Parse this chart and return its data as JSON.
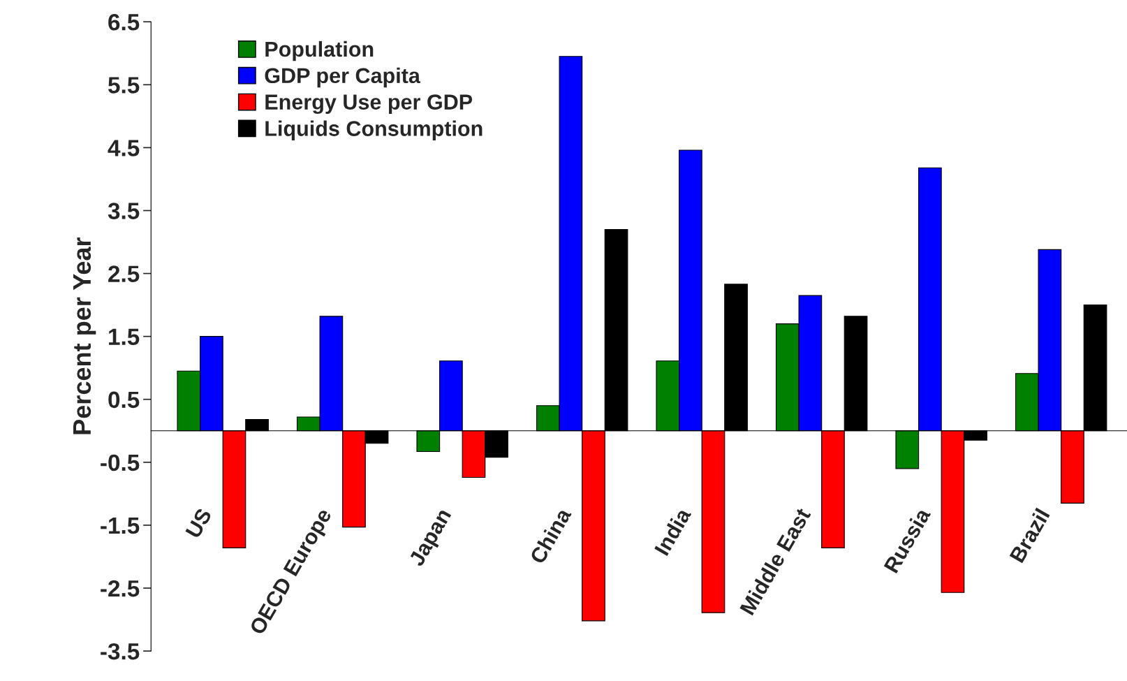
{
  "chart_data": {
    "type": "bar",
    "ylabel": "Percent per Year",
    "categories": [
      "US",
      "OECD Europe",
      "Japan",
      "China",
      "India",
      "Middle East",
      "Russia",
      "Brazil"
    ],
    "series": [
      {
        "name": "Population",
        "color": "#008000",
        "values": [
          0.95,
          0.22,
          -0.33,
          0.4,
          1.11,
          1.7,
          -0.6,
          0.91
        ]
      },
      {
        "name": "GDP per Capita",
        "color": "#0000ff",
        "values": [
          1.5,
          1.82,
          1.11,
          5.95,
          4.46,
          2.15,
          4.18,
          2.88
        ]
      },
      {
        "name": "Energy Use per GDP",
        "color": "#ff0000",
        "values": [
          -1.86,
          -1.53,
          -0.74,
          -3.02,
          -2.89,
          -1.86,
          -2.57,
          -1.15
        ]
      },
      {
        "name": "Liquids Consumption",
        "color": "#000000",
        "values": [
          0.18,
          -0.2,
          -0.42,
          3.2,
          2.33,
          1.82,
          -0.15,
          2.0
        ]
      }
    ],
    "ylim": [
      -3.5,
      6.5
    ],
    "yticks": [
      -3.5,
      -2.5,
      -1.5,
      -0.5,
      0.5,
      1.5,
      2.5,
      3.5,
      4.5,
      5.5,
      6.5
    ],
    "grid": false,
    "legend": "top left"
  }
}
